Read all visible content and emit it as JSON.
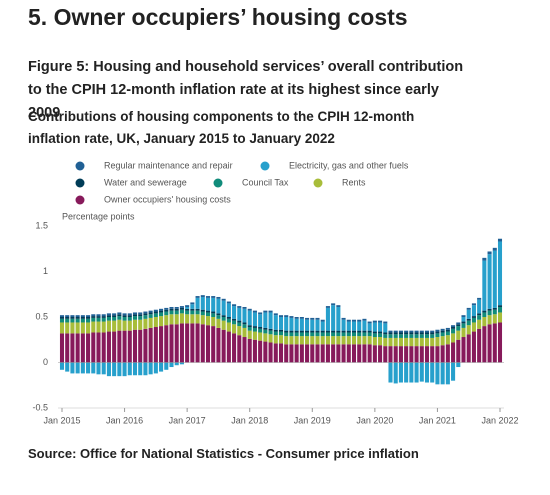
{
  "header": "5.  Owner occupiers’ housing costs",
  "chart_data": {
    "type": "stacked_bar",
    "title": "Figure 5: Housing and household services’ overall contribution to the CPIH 12-month inflation rate at its highest since early 2009",
    "subtitle": "Contributions of housing components to the CPIH 12-month inflation rate, UK, January 2015 to January 2022",
    "y_label": "Percentage points",
    "source": "Source: Office for National Statistics - Consumer price inflation",
    "ylim": [
      -0.5,
      1.5
    ],
    "yticks": [
      1.5,
      1,
      0.5,
      0,
      -0.5
    ],
    "grid": false,
    "categories": [
      "Jan 2015",
      null,
      null,
      null,
      null,
      null,
      null,
      null,
      null,
      null,
      null,
      null,
      "Jan 2016",
      null,
      null,
      null,
      null,
      null,
      null,
      null,
      null,
      null,
      null,
      null,
      "Jan 2017",
      null,
      null,
      null,
      null,
      null,
      null,
      null,
      null,
      null,
      null,
      null,
      "Jan 2018",
      null,
      null,
      null,
      null,
      null,
      null,
      null,
      null,
      null,
      null,
      null,
      "Jan 2019",
      null,
      null,
      null,
      null,
      null,
      null,
      null,
      null,
      null,
      null,
      null,
      "Jan 2020",
      null,
      null,
      null,
      null,
      null,
      null,
      null,
      null,
      null,
      null,
      null,
      "Jan 2021",
      null,
      null,
      null,
      null,
      null,
      null,
      null,
      null,
      null,
      null,
      null,
      "Jan 2022"
    ],
    "series": [
      {
        "name": "Regular maintenance and repair",
        "color": "#206095",
        "values": [
          0.02,
          0.02,
          0.02,
          0.02,
          0.02,
          0.02,
          0.02,
          0.02,
          0.02,
          0.02,
          0.02,
          0.02,
          0.02,
          0.02,
          0.02,
          0.02,
          0.02,
          0.02,
          0.02,
          0.02,
          0.02,
          0.02,
          0.02,
          0.02,
          0.02,
          0.02,
          0.02,
          0.02,
          0.02,
          0.02,
          0.02,
          0.02,
          0.02,
          0.02,
          0.02,
          0.02,
          0.02,
          0.02,
          0.02,
          0.02,
          0.02,
          0.02,
          0.02,
          0.02,
          0.02,
          0.02,
          0.02,
          0.02,
          0.02,
          0.02,
          0.02,
          0.02,
          0.02,
          0.02,
          0.02,
          0.02,
          0.02,
          0.02,
          0.02,
          0.02,
          0.02,
          0.02,
          0.02,
          0.02,
          0.02,
          0.02,
          0.02,
          0.02,
          0.02,
          0.02,
          0.02,
          0.02,
          0.02,
          0.02,
          0.02,
          0.02,
          0.02,
          0.02,
          0.02,
          0.02,
          0.02,
          0.03,
          0.03,
          0.03,
          0.03
        ]
      },
      {
        "name": "Electricity, gas and other fuels",
        "color": "#27a0cc",
        "values": [
          -0.08,
          -0.1,
          -0.12,
          -0.12,
          -0.12,
          -0.12,
          -0.12,
          -0.13,
          -0.13,
          -0.15,
          -0.15,
          -0.15,
          -0.15,
          -0.14,
          -0.14,
          -0.14,
          -0.14,
          -0.13,
          -0.12,
          -0.1,
          -0.08,
          -0.05,
          -0.03,
          -0.02,
          0.02,
          0.05,
          0.12,
          0.14,
          0.14,
          0.15,
          0.16,
          0.16,
          0.15,
          0.14,
          0.14,
          0.15,
          0.16,
          0.15,
          0.14,
          0.17,
          0.18,
          0.16,
          0.14,
          0.15,
          0.14,
          0.13,
          0.13,
          0.12,
          0.12,
          0.12,
          0.1,
          0.25,
          0.28,
          0.26,
          0.12,
          0.1,
          0.1,
          0.1,
          0.11,
          0.08,
          0.1,
          0.1,
          0.1,
          -0.22,
          -0.23,
          -0.22,
          -0.22,
          -0.22,
          -0.22,
          -0.21,
          -0.22,
          -0.22,
          -0.24,
          -0.24,
          -0.24,
          -0.2,
          -0.05,
          0.05,
          0.1,
          0.12,
          0.15,
          0.55,
          0.6,
          0.63,
          0.7
        ]
      },
      {
        "name": "Water and sewerage",
        "color": "#003c57",
        "values": [
          0.02,
          0.02,
          0.02,
          0.02,
          0.02,
          0.02,
          0.02,
          0.02,
          0.02,
          0.02,
          0.02,
          0.02,
          0.02,
          0.02,
          0.02,
          0.02,
          0.02,
          0.02,
          0.02,
          0.02,
          0.02,
          0.02,
          0.02,
          0.02,
          0.02,
          0.02,
          0.02,
          0.02,
          0.02,
          0.02,
          0.02,
          0.02,
          0.02,
          0.02,
          0.02,
          0.02,
          0.02,
          0.02,
          0.02,
          0.02,
          0.02,
          0.02,
          0.02,
          0.02,
          0.02,
          0.02,
          0.02,
          0.02,
          0.02,
          0.02,
          0.02,
          0.02,
          0.02,
          0.02,
          0.02,
          0.02,
          0.02,
          0.02,
          0.02,
          0.02,
          0.02,
          0.02,
          0.02,
          0.02,
          0.02,
          0.02,
          0.02,
          0.02,
          0.02,
          0.02,
          0.02,
          0.02,
          0.02,
          0.02,
          0.02,
          0.02,
          0.02,
          0.02,
          0.02,
          0.02,
          0.02,
          0.02,
          0.02,
          0.02,
          0.02
        ]
      },
      {
        "name": "Council Tax",
        "color": "#118c7b",
        "values": [
          0.04,
          0.04,
          0.04,
          0.04,
          0.04,
          0.04,
          0.04,
          0.04,
          0.04,
          0.04,
          0.04,
          0.04,
          0.04,
          0.04,
          0.04,
          0.04,
          0.04,
          0.04,
          0.04,
          0.04,
          0.04,
          0.04,
          0.04,
          0.04,
          0.04,
          0.04,
          0.04,
          0.04,
          0.04,
          0.04,
          0.04,
          0.04,
          0.04,
          0.04,
          0.04,
          0.04,
          0.04,
          0.04,
          0.04,
          0.04,
          0.04,
          0.04,
          0.04,
          0.04,
          0.04,
          0.04,
          0.04,
          0.04,
          0.04,
          0.04,
          0.04,
          0.04,
          0.04,
          0.04,
          0.04,
          0.04,
          0.04,
          0.04,
          0.04,
          0.04,
          0.04,
          0.04,
          0.04,
          0.04,
          0.04,
          0.04,
          0.04,
          0.04,
          0.04,
          0.04,
          0.04,
          0.04,
          0.04,
          0.04,
          0.04,
          0.05,
          0.05,
          0.05,
          0.05,
          0.05,
          0.05,
          0.05,
          0.05,
          0.05,
          0.06
        ]
      },
      {
        "name": "Rents",
        "color": "#a8bd3a",
        "values": [
          0.12,
          0.12,
          0.12,
          0.12,
          0.12,
          0.12,
          0.12,
          0.12,
          0.12,
          0.12,
          0.12,
          0.12,
          0.11,
          0.11,
          0.11,
          0.11,
          0.11,
          0.11,
          0.11,
          0.11,
          0.11,
          0.11,
          0.11,
          0.11,
          0.1,
          0.1,
          0.1,
          0.1,
          0.1,
          0.1,
          0.1,
          0.1,
          0.1,
          0.1,
          0.1,
          0.1,
          0.09,
          0.09,
          0.09,
          0.09,
          0.09,
          0.09,
          0.09,
          0.09,
          0.09,
          0.09,
          0.09,
          0.09,
          0.09,
          0.09,
          0.09,
          0.09,
          0.09,
          0.09,
          0.09,
          0.09,
          0.09,
          0.09,
          0.09,
          0.09,
          0.09,
          0.09,
          0.09,
          0.09,
          0.09,
          0.09,
          0.09,
          0.09,
          0.09,
          0.09,
          0.09,
          0.09,
          0.1,
          0.1,
          0.1,
          0.1,
          0.1,
          0.1,
          0.1,
          0.1,
          0.1,
          0.1,
          0.1,
          0.1,
          0.11
        ]
      },
      {
        "name": "Owner occupiers' housing costs",
        "color": "#871a5b",
        "values": [
          0.32,
          0.32,
          0.32,
          0.32,
          0.32,
          0.32,
          0.33,
          0.33,
          0.33,
          0.34,
          0.34,
          0.35,
          0.35,
          0.35,
          0.36,
          0.36,
          0.37,
          0.38,
          0.39,
          0.4,
          0.41,
          0.42,
          0.42,
          0.43,
          0.43,
          0.43,
          0.43,
          0.42,
          0.41,
          0.4,
          0.38,
          0.36,
          0.34,
          0.32,
          0.3,
          0.28,
          0.26,
          0.25,
          0.24,
          0.23,
          0.22,
          0.21,
          0.21,
          0.2,
          0.2,
          0.2,
          0.2,
          0.2,
          0.2,
          0.2,
          0.2,
          0.2,
          0.2,
          0.2,
          0.2,
          0.2,
          0.2,
          0.2,
          0.2,
          0.2,
          0.19,
          0.19,
          0.18,
          0.18,
          0.18,
          0.18,
          0.18,
          0.18,
          0.18,
          0.18,
          0.18,
          0.18,
          0.18,
          0.19,
          0.2,
          0.22,
          0.25,
          0.28,
          0.31,
          0.34,
          0.37,
          0.4,
          0.42,
          0.43,
          0.44
        ]
      }
    ]
  }
}
